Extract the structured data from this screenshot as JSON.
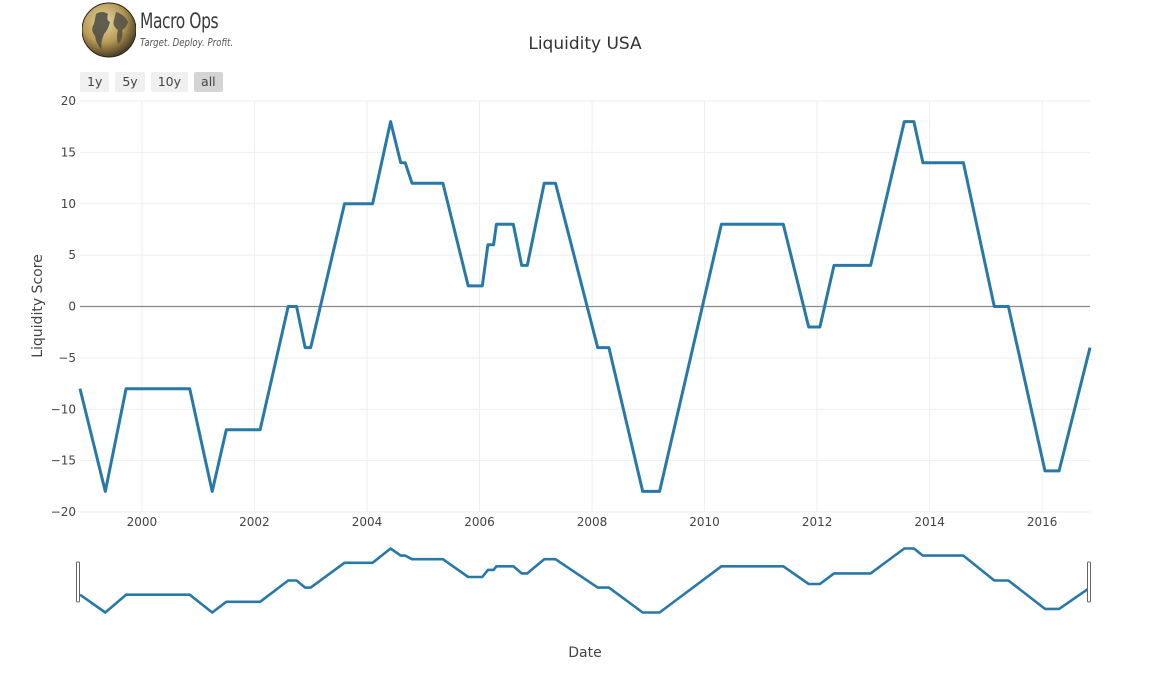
{
  "logo": {
    "name": "Macro Ops",
    "tagline": "Target. Deploy. Profit.",
    "icon": "globe-icon"
  },
  "range_selector": {
    "buttons": [
      {
        "label": "1y",
        "active": false
      },
      {
        "label": "5y",
        "active": false
      },
      {
        "label": "10y",
        "active": false
      },
      {
        "label": "all",
        "active": true
      }
    ]
  },
  "colors": {
    "line": "#2878a8",
    "grid": "#eeeeee",
    "zero_line": "#888888",
    "button_bg": "#f0f0f0",
    "button_active_bg": "#d4d4d4"
  },
  "chart_data": {
    "type": "line",
    "title": "Liquidity USA",
    "xlabel": "Date",
    "ylabel": "Liquidity Score",
    "xlim": [
      1998.9,
      2016.85
    ],
    "ylim": [
      -20,
      20
    ],
    "x_ticks": [
      2000,
      2002,
      2004,
      2006,
      2008,
      2010,
      2012,
      2014,
      2016
    ],
    "x_tick_labels": [
      "2000",
      "2002",
      "2004",
      "2006",
      "2008",
      "2010",
      "2012",
      "2014",
      "2016"
    ],
    "y_ticks": [
      -20,
      -15,
      -10,
      -5,
      0,
      5,
      10,
      15,
      20
    ],
    "y_tick_labels": [
      "−20",
      "−15",
      "−10",
      "−5",
      "0",
      "5",
      "10",
      "15",
      "20"
    ],
    "grid": true,
    "range_slider": true,
    "series": [
      {
        "name": "Liquidity Score",
        "x": [
          1998.9,
          1999.35,
          1999.72,
          2000.85,
          2001.25,
          2001.5,
          2002.1,
          2002.6,
          2002.75,
          2002.9,
          2003.0,
          2003.6,
          2004.1,
          2004.42,
          2004.6,
          2004.68,
          2004.8,
          2005.35,
          2005.8,
          2006.05,
          2006.15,
          2006.25,
          2006.3,
          2006.6,
          2006.75,
          2006.85,
          2007.15,
          2007.35,
          2008.1,
          2008.3,
          2008.9,
          2009.2,
          2010.3,
          2010.8,
          2011.4,
          2011.85,
          2012.05,
          2012.3,
          2012.95,
          2013.55,
          2013.72,
          2013.88,
          2014.6,
          2015.15,
          2015.4,
          2016.05,
          2016.3,
          2016.85
        ],
        "y": [
          -8,
          -18,
          -8,
          -8,
          -18,
          -12,
          -12,
          0,
          0,
          -4,
          -4,
          10,
          10,
          18,
          14,
          14,
          12,
          12,
          2,
          2,
          6,
          6,
          8,
          8,
          4,
          4,
          12,
          12,
          -4,
          -4,
          -18,
          -18,
          8,
          8,
          8,
          -2,
          -2,
          4,
          4,
          18,
          18,
          14,
          14,
          0,
          0,
          -16,
          -16,
          -4
        ]
      }
    ]
  }
}
